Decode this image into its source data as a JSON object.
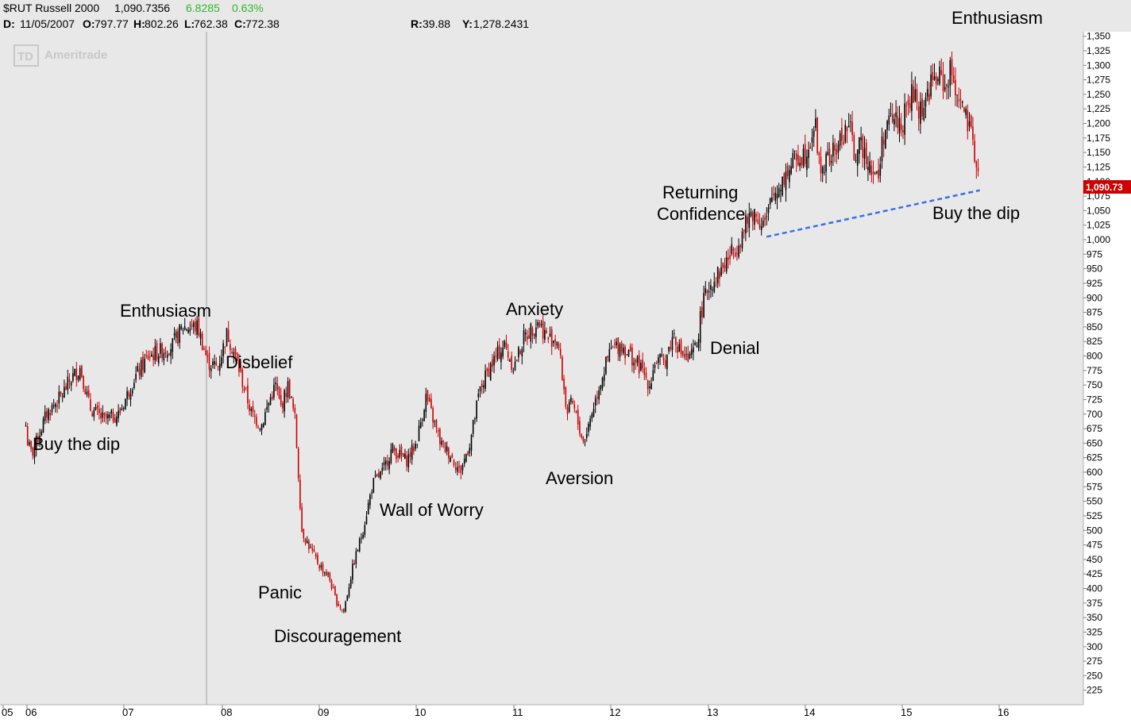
{
  "header": {
    "symbol": "$RUT Russell 2000",
    "last": "1,090.7356",
    "change": "6.8285",
    "change_pct": "0.63%",
    "change_color": "#2db52d",
    "row2_prefix": "D:",
    "date": "11/05/2007",
    "open_label": "O:",
    "open": "797.77",
    "high_label": "H:",
    "high": "802.26",
    "low_label": "L:",
    "low": "762.38",
    "close_label": "C:",
    "close": "772.38",
    "r_label": "R:",
    "r_value": "39.88",
    "y_label": "Y:",
    "y_value": "1,278.2431"
  },
  "watermark": {
    "logo": "TD",
    "text": "Ameritrade"
  },
  "last_price_tag": "1,090.73",
  "colors": {
    "background": "#e8e8e8",
    "up_candle": "#000000",
    "down_candle": "#cc0000",
    "price_tag": "#cc0000",
    "trendline": "#3a6fe8",
    "axis_panel": "#ffffff"
  },
  "chart_data": {
    "type": "line",
    "title": "$RUT Russell 2000",
    "xlabel": "",
    "ylabel": "",
    "ylim": [
      200,
      1360
    ],
    "x_ticks": [
      "05",
      "06",
      "07",
      "08",
      "09",
      "10",
      "11",
      "12",
      "13",
      "14",
      "15",
      "16"
    ],
    "y_ticks": [
      "225",
      "250",
      "275",
      "300",
      "325",
      "350",
      "375",
      "400",
      "425",
      "450",
      "475",
      "500",
      "525",
      "550",
      "575",
      "600",
      "625",
      "650",
      "675",
      "700",
      "725",
      "750",
      "775",
      "800",
      "825",
      "850",
      "875",
      "900",
      "925",
      "950",
      "975",
      "1,000",
      "1,025",
      "1,050",
      "1,075",
      "1,100",
      "1,125",
      "1,150",
      "1,175",
      "1,200",
      "1,225",
      "1,250",
      "1,275",
      "1,300",
      "1,325",
      "1,350"
    ],
    "series": [
      {
        "name": "",
        "x": [
          2005.95,
          2006.05,
          2006.2,
          2006.35,
          2006.45,
          2006.55,
          2006.65,
          2006.8,
          2006.95,
          2007.1,
          2007.25,
          2007.4,
          2007.5,
          2007.6,
          2007.75,
          2007.85,
          2007.95,
          2008.05,
          2008.15,
          2008.3,
          2008.4,
          2008.5,
          2008.55,
          2008.6,
          2008.68,
          2008.75,
          2008.82,
          2008.9,
          2009.0,
          2009.1,
          2009.17,
          2009.25,
          2009.35,
          2009.45,
          2009.55,
          2009.65,
          2009.75,
          2009.9,
          2010.0,
          2010.1,
          2010.25,
          2010.35,
          2010.45,
          2010.55,
          2010.65,
          2010.75,
          2010.9,
          2011.0,
          2011.1,
          2011.25,
          2011.35,
          2011.45,
          2011.55,
          2011.6,
          2011.72,
          2011.8,
          2011.9,
          2012.0,
          2012.1,
          2012.2,
          2012.3,
          2012.4,
          2012.45,
          2012.55,
          2012.65,
          2012.7,
          2012.8,
          2012.88,
          2012.93,
          2013.0,
          2013.1,
          2013.25,
          2013.35,
          2013.45,
          2013.55,
          2013.6,
          2013.65,
          2013.75,
          2013.9,
          2014.0,
          2014.1,
          2014.15,
          2014.3,
          2014.45,
          2014.5,
          2014.6,
          2014.75,
          2014.8,
          2014.9,
          2015.0,
          2015.1,
          2015.2,
          2015.3,
          2015.4,
          2015.45,
          2015.5,
          2015.6,
          2015.7,
          2015.75,
          2015.8
        ],
        "y": [
          680,
          630,
          700,
          730,
          760,
          780,
          710,
          690,
          700,
          760,
          800,
          810,
          820,
          850,
          850,
          790,
          780,
          840,
          790,
          700,
          680,
          730,
          750,
          710,
          750,
          690,
          500,
          470,
          440,
          420,
          380,
          360,
          440,
          500,
          580,
          600,
          640,
          620,
          650,
          730,
          650,
          630,
          600,
          650,
          740,
          780,
          820,
          780,
          830,
          860,
          830,
          830,
          700,
          720,
          650,
          700,
          760,
          810,
          820,
          800,
          780,
          750,
          790,
          790,
          840,
          810,
          790,
          820,
          880,
          920,
          940,
          980,
          1010,
          1050,
          1030,
          1030,
          1070,
          1100,
          1140,
          1150,
          1200,
          1120,
          1150,
          1200,
          1150,
          1160,
          1100,
          1180,
          1210,
          1200,
          1250,
          1220,
          1270,
          1280,
          1260,
          1290,
          1240,
          1180,
          1150,
          1090.73
        ]
      }
    ],
    "annotations": [
      "Enthusiasm",
      "Enthusiasm",
      "Disbelief",
      "Buy the dip",
      "Panic",
      "Discouragement",
      "Wall of Worry",
      "Anxiety",
      "Aversion",
      "Denial",
      "Returning",
      "Confidence",
      "Buy the dip"
    ],
    "trendline": {
      "from": [
        2013.6,
        1005
      ],
      "to": [
        2015.8,
        1085
      ]
    },
    "grid": false,
    "legend": "none"
  }
}
